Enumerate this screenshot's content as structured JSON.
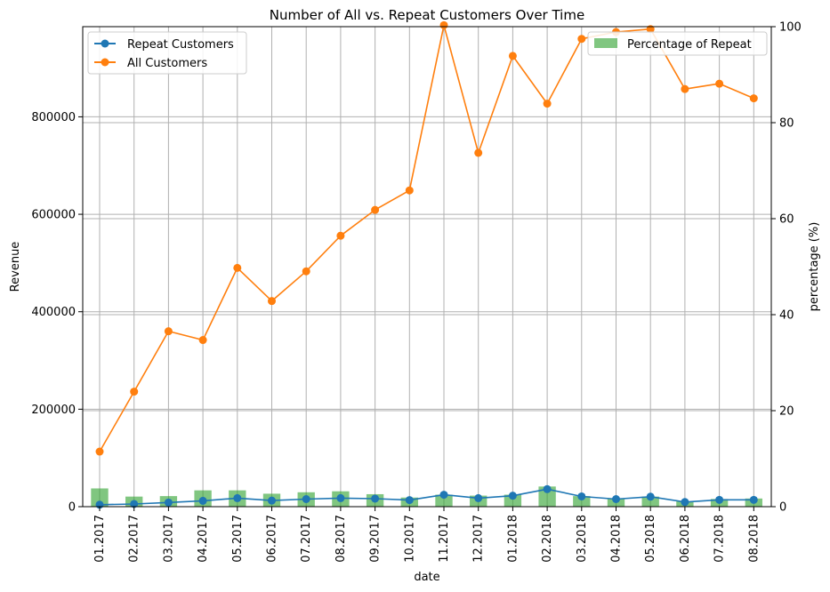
{
  "chart_data": {
    "type": "line",
    "title": "Number of All vs. Repeat Customers Over Time",
    "xlabel": "date",
    "ylabel_left": "Revenue",
    "ylabel_right": "percentage (%)",
    "categories": [
      "01.2017",
      "02.2017",
      "03.2017",
      "04.2017",
      "05.2017",
      "06.2017",
      "07.2017",
      "08.2017",
      "09.2017",
      "10.2017",
      "11.2017",
      "12.2017",
      "01.2018",
      "02.2018",
      "03.2018",
      "04.2018",
      "05.2018",
      "06.2018",
      "07.2018",
      "08.2018"
    ],
    "ylim_left": [
      0,
      985000
    ],
    "yticks_left": [
      0,
      200000,
      400000,
      600000,
      800000
    ],
    "ylim_right": [
      0,
      100
    ],
    "yticks_right": [
      0,
      20,
      40,
      60,
      80,
      100
    ],
    "grid": true,
    "series": [
      {
        "name": "Repeat Customers",
        "axis": "left",
        "kind": "line",
        "color": "#1f77b4",
        "values": [
          4000,
          5500,
          8500,
          12000,
          17500,
          12500,
          15500,
          17500,
          16500,
          13500,
          24500,
          17500,
          22500,
          36000,
          21000,
          15500,
          20500,
          9500,
          14000,
          14000
        ]
      },
      {
        "name": "All Customers",
        "axis": "left",
        "kind": "line",
        "color": "#ff7f0e",
        "values": [
          113000,
          236000,
          360000,
          342000,
          490000,
          422000,
          483000,
          556000,
          609000,
          649000,
          988000,
          726000,
          925000,
          827000,
          960000,
          974000,
          980000,
          857000,
          868000,
          838000
        ]
      },
      {
        "name": "Percentage of Repeat",
        "axis": "right",
        "kind": "bar",
        "color": "#2ca02c",
        "values": [
          3.8,
          2.1,
          2.2,
          3.4,
          3.4,
          2.7,
          3.0,
          3.2,
          2.6,
          1.9,
          2.5,
          2.3,
          2.5,
          4.2,
          2.2,
          1.6,
          2.1,
          1.1,
          1.6,
          1.7
        ]
      }
    ],
    "legend_left_placement": "upper-left",
    "legend_right_placement": "upper-right"
  }
}
